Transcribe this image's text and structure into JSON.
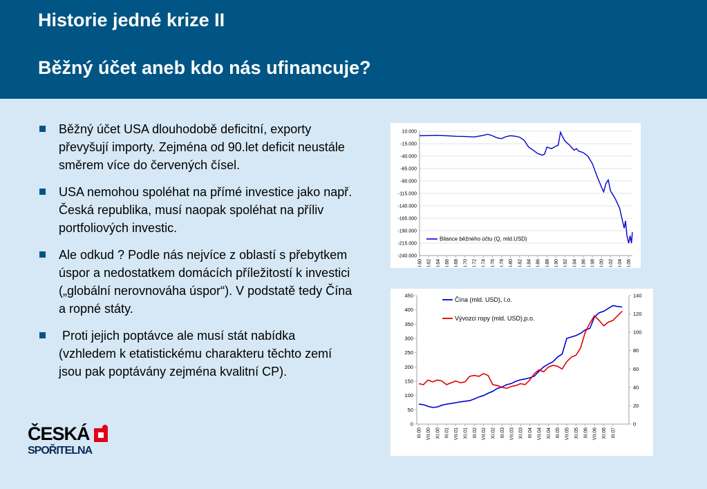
{
  "header": {
    "title": "Historie jedné krize II",
    "subtitle": "Běžný účet aneb kdo nás ufinancuje?"
  },
  "bullets": [
    "Běžný účet USA dlouhodobě deficitní, exporty převyšují importy. Zejména od 90.let deficit neustále směrem více do červených čísel.",
    "USA nemohou spoléhat na přímé investice jako např. Česká republika, musí naopak spoléhat na příliv portfoliových investic.",
    "Ale odkud ? Podle nás nejvíce z oblastí s přebytkem úspor a nedostatkem domácích příležitostí k investici („globální nerovnováha úspor“). V podstatě tedy Čína a ropné státy.",
    " Proti jejich poptávce ale musí stát nabídka (vzhledem k etatistickému charakteru těchto zemí jsou pak poptávány zejména kvalitní CP)."
  ],
  "logo": {
    "line1": "ČESKÁ",
    "line2": "SPOŘITELNA"
  },
  "colors": {
    "header": "#005584",
    "background": "#d6e8f5",
    "blue_series": "#0000cc",
    "red_series": "#e00000"
  },
  "chart_data": [
    {
      "type": "line",
      "ylim": [
        -240000,
        10000
      ],
      "y_ticks": [
        "10.000",
        "-15.000",
        "-40.000",
        "-65.000",
        "-90.000",
        "-115.000",
        "-140.000",
        "-165.000",
        "-190.000",
        "-215.000",
        "-240.000"
      ],
      "y_tick_values": [
        10000,
        -15000,
        -40000,
        -65000,
        -90000,
        -115000,
        -140000,
        -165000,
        -190000,
        -215000,
        -240000
      ],
      "x_ticks": [
        "I.60",
        "I.62",
        "I.64",
        "I.66",
        "I.68",
        "I.70",
        "I.72",
        "I.74",
        "I.76",
        "I.78",
        "I.80",
        "I.82",
        "I.84",
        "I.86",
        "I.88",
        "I.90",
        "I.92",
        "I.94",
        "I.96",
        "I.98",
        "I.00",
        "I.02",
        "I.04",
        "I.06"
      ],
      "xlim": [
        1960,
        2006.8
      ],
      "grid": true,
      "legend_position": "bottom-right",
      "series": [
        {
          "name": "Bilance běžného účtu (Q, mld.USD)",
          "color": "#0000cc",
          "x": [
            1960,
            1962,
            1964,
            1966,
            1968,
            1970,
            1972,
            1974,
            1975,
            1976,
            1977,
            1978,
            1979,
            1980,
            1981,
            1982,
            1983,
            1984,
            1985,
            1986,
            1987,
            1987.5,
            1988,
            1989,
            1990,
            1990.5,
            1991,
            1991.5,
            1992,
            1993,
            1994,
            1994.5,
            1995,
            1996,
            1997,
            1998,
            1999,
            2000,
            2000.5,
            2001,
            2001.5,
            2002,
            2003,
            2004,
            2004.5,
            2005,
            2005.3,
            2005.6,
            2006,
            2006.3,
            2006.6,
            2006.8
          ],
          "y": [
            1000,
            1200,
            1500,
            800,
            -200,
            -500,
            -1500,
            1500,
            4000,
            1000,
            -3000,
            -5000,
            -1000,
            1000,
            0,
            -2000,
            -8000,
            -22000,
            -28000,
            -35000,
            -38000,
            -36000,
            -22000,
            -25000,
            -20000,
            -18000,
            8000,
            -2000,
            -10000,
            -18000,
            -28000,
            -25000,
            -30000,
            -33000,
            -40000,
            -55000,
            -80000,
            -102000,
            -112000,
            -95000,
            -88000,
            -110000,
            -125000,
            -145000,
            -165000,
            -185000,
            -170000,
            -200000,
            -215000,
            -200000,
            -215000,
            -193000
          ]
        }
      ]
    },
    {
      "type": "line",
      "ylim": [
        0,
        450
      ],
      "y2lim": [
        0,
        140
      ],
      "y_ticks": [
        "0",
        "50",
        "100",
        "150",
        "200",
        "250",
        "300",
        "350",
        "400",
        "450"
      ],
      "y2_ticks": [
        "0",
        "20",
        "40",
        "60",
        "80",
        "100",
        "120",
        "140"
      ],
      "x_ticks": [
        "III.00",
        "VII.00",
        "XI.00",
        "III.01",
        "VII.01",
        "XI.01",
        "III.02",
        "VII.02",
        "XI.02",
        "III.03",
        "VII.03",
        "XI.03",
        "III.04",
        "VII.04",
        "XI.04",
        "III.05",
        "VII.05",
        "XI.05",
        "III.06",
        "VII.06",
        "XI.06",
        "III.07"
      ],
      "xlim": [
        0,
        22.5
      ],
      "grid": false,
      "legend_position": "top-right",
      "series": [
        {
          "name": "Čína (mld. USD), l.o.",
          "axis": "left",
          "color": "#0000cc",
          "x": [
            0,
            0.5,
            1,
            1.5,
            2,
            2.5,
            3,
            3.5,
            4,
            4.5,
            5,
            5.5,
            6,
            6.5,
            7,
            7.5,
            8,
            8.5,
            9,
            9.5,
            10,
            10.5,
            11,
            11.5,
            12,
            12.5,
            13,
            13.5,
            14,
            14.5,
            15,
            15.5,
            16,
            16.5,
            17,
            17.5,
            18,
            18.5,
            19,
            19.5,
            20,
            20.5,
            21,
            21.5,
            22
          ],
          "y": [
            70,
            68,
            62,
            58,
            60,
            66,
            70,
            72,
            75,
            78,
            80,
            82,
            88,
            95,
            100,
            108,
            115,
            125,
            130,
            138,
            142,
            150,
            155,
            158,
            162,
            168,
            185,
            200,
            210,
            218,
            235,
            245,
            300,
            305,
            310,
            318,
            330,
            335,
            375,
            390,
            395,
            405,
            415,
            412,
            410
          ]
        },
        {
          "name": "Vývozci ropy (mld. USD),p.o.",
          "axis": "right",
          "color": "#e00000",
          "x": [
            0,
            0.5,
            1,
            1.5,
            2,
            2.5,
            3,
            3.5,
            4,
            4.5,
            5,
            5.5,
            6,
            6.5,
            7,
            7.5,
            8,
            8.5,
            9,
            9.5,
            10,
            10.5,
            11,
            11.5,
            12,
            12.5,
            13,
            13.5,
            14,
            14.5,
            15,
            15.5,
            16,
            16.5,
            17,
            17.5,
            18,
            18.5,
            19,
            19.5,
            20,
            20.5,
            21,
            21.5,
            22
          ],
          "y": [
            44,
            43,
            48,
            46,
            48,
            47,
            43,
            45,
            47,
            45,
            46,
            52,
            53,
            52,
            55,
            53,
            43,
            42,
            40,
            39,
            41,
            42,
            44,
            43,
            48,
            55,
            59,
            57,
            62,
            64,
            63,
            60,
            68,
            73,
            75,
            83,
            100,
            110,
            118,
            113,
            107,
            111,
            113,
            118,
            123
          ]
        }
      ]
    }
  ]
}
